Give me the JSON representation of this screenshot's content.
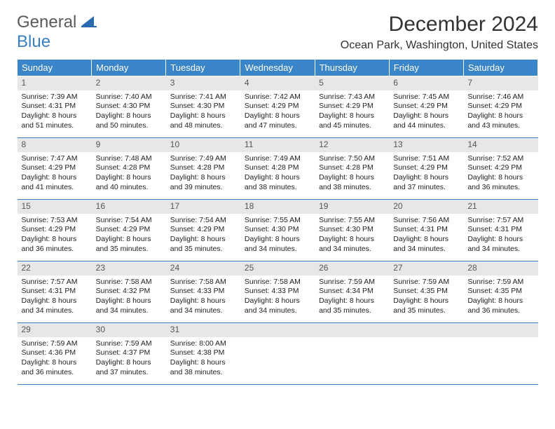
{
  "logo": {
    "word1": "General",
    "word2": "Blue",
    "icon_color": "#2a6bb0"
  },
  "title": "December 2024",
  "subtitle": "Ocean Park, Washington, United States",
  "colors": {
    "header_bg": "#3a85c7",
    "header_fg": "#ffffff",
    "daynum_bg": "#e7e7e7",
    "rule": "#3a7fbf",
    "text": "#222222"
  },
  "day_headers": [
    "Sunday",
    "Monday",
    "Tuesday",
    "Wednesday",
    "Thursday",
    "Friday",
    "Saturday"
  ],
  "weeks": [
    [
      {
        "n": "1",
        "sunrise": "7:39 AM",
        "sunset": "4:31 PM",
        "dl": "8 hours and 51 minutes."
      },
      {
        "n": "2",
        "sunrise": "7:40 AM",
        "sunset": "4:30 PM",
        "dl": "8 hours and 50 minutes."
      },
      {
        "n": "3",
        "sunrise": "7:41 AM",
        "sunset": "4:30 PM",
        "dl": "8 hours and 48 minutes."
      },
      {
        "n": "4",
        "sunrise": "7:42 AM",
        "sunset": "4:29 PM",
        "dl": "8 hours and 47 minutes."
      },
      {
        "n": "5",
        "sunrise": "7:43 AM",
        "sunset": "4:29 PM",
        "dl": "8 hours and 45 minutes."
      },
      {
        "n": "6",
        "sunrise": "7:45 AM",
        "sunset": "4:29 PM",
        "dl": "8 hours and 44 minutes."
      },
      {
        "n": "7",
        "sunrise": "7:46 AM",
        "sunset": "4:29 PM",
        "dl": "8 hours and 43 minutes."
      }
    ],
    [
      {
        "n": "8",
        "sunrise": "7:47 AM",
        "sunset": "4:29 PM",
        "dl": "8 hours and 41 minutes."
      },
      {
        "n": "9",
        "sunrise": "7:48 AM",
        "sunset": "4:28 PM",
        "dl": "8 hours and 40 minutes."
      },
      {
        "n": "10",
        "sunrise": "7:49 AM",
        "sunset": "4:28 PM",
        "dl": "8 hours and 39 minutes."
      },
      {
        "n": "11",
        "sunrise": "7:49 AM",
        "sunset": "4:28 PM",
        "dl": "8 hours and 38 minutes."
      },
      {
        "n": "12",
        "sunrise": "7:50 AM",
        "sunset": "4:28 PM",
        "dl": "8 hours and 38 minutes."
      },
      {
        "n": "13",
        "sunrise": "7:51 AM",
        "sunset": "4:29 PM",
        "dl": "8 hours and 37 minutes."
      },
      {
        "n": "14",
        "sunrise": "7:52 AM",
        "sunset": "4:29 PM",
        "dl": "8 hours and 36 minutes."
      }
    ],
    [
      {
        "n": "15",
        "sunrise": "7:53 AM",
        "sunset": "4:29 PM",
        "dl": "8 hours and 36 minutes."
      },
      {
        "n": "16",
        "sunrise": "7:54 AM",
        "sunset": "4:29 PM",
        "dl": "8 hours and 35 minutes."
      },
      {
        "n": "17",
        "sunrise": "7:54 AM",
        "sunset": "4:29 PM",
        "dl": "8 hours and 35 minutes."
      },
      {
        "n": "18",
        "sunrise": "7:55 AM",
        "sunset": "4:30 PM",
        "dl": "8 hours and 34 minutes."
      },
      {
        "n": "19",
        "sunrise": "7:55 AM",
        "sunset": "4:30 PM",
        "dl": "8 hours and 34 minutes."
      },
      {
        "n": "20",
        "sunrise": "7:56 AM",
        "sunset": "4:31 PM",
        "dl": "8 hours and 34 minutes."
      },
      {
        "n": "21",
        "sunrise": "7:57 AM",
        "sunset": "4:31 PM",
        "dl": "8 hours and 34 minutes."
      }
    ],
    [
      {
        "n": "22",
        "sunrise": "7:57 AM",
        "sunset": "4:31 PM",
        "dl": "8 hours and 34 minutes."
      },
      {
        "n": "23",
        "sunrise": "7:58 AM",
        "sunset": "4:32 PM",
        "dl": "8 hours and 34 minutes."
      },
      {
        "n": "24",
        "sunrise": "7:58 AM",
        "sunset": "4:33 PM",
        "dl": "8 hours and 34 minutes."
      },
      {
        "n": "25",
        "sunrise": "7:58 AM",
        "sunset": "4:33 PM",
        "dl": "8 hours and 34 minutes."
      },
      {
        "n": "26",
        "sunrise": "7:59 AM",
        "sunset": "4:34 PM",
        "dl": "8 hours and 35 minutes."
      },
      {
        "n": "27",
        "sunrise": "7:59 AM",
        "sunset": "4:35 PM",
        "dl": "8 hours and 35 minutes."
      },
      {
        "n": "28",
        "sunrise": "7:59 AM",
        "sunset": "4:35 PM",
        "dl": "8 hours and 36 minutes."
      }
    ],
    [
      {
        "n": "29",
        "sunrise": "7:59 AM",
        "sunset": "4:36 PM",
        "dl": "8 hours and 36 minutes."
      },
      {
        "n": "30",
        "sunrise": "7:59 AM",
        "sunset": "4:37 PM",
        "dl": "8 hours and 37 minutes."
      },
      {
        "n": "31",
        "sunrise": "8:00 AM",
        "sunset": "4:38 PM",
        "dl": "8 hours and 38 minutes."
      },
      {
        "empty": true
      },
      {
        "empty": true
      },
      {
        "empty": true
      },
      {
        "empty": true
      }
    ]
  ],
  "labels": {
    "sunrise": "Sunrise: ",
    "sunset": "Sunset: ",
    "daylight": "Daylight: "
  }
}
